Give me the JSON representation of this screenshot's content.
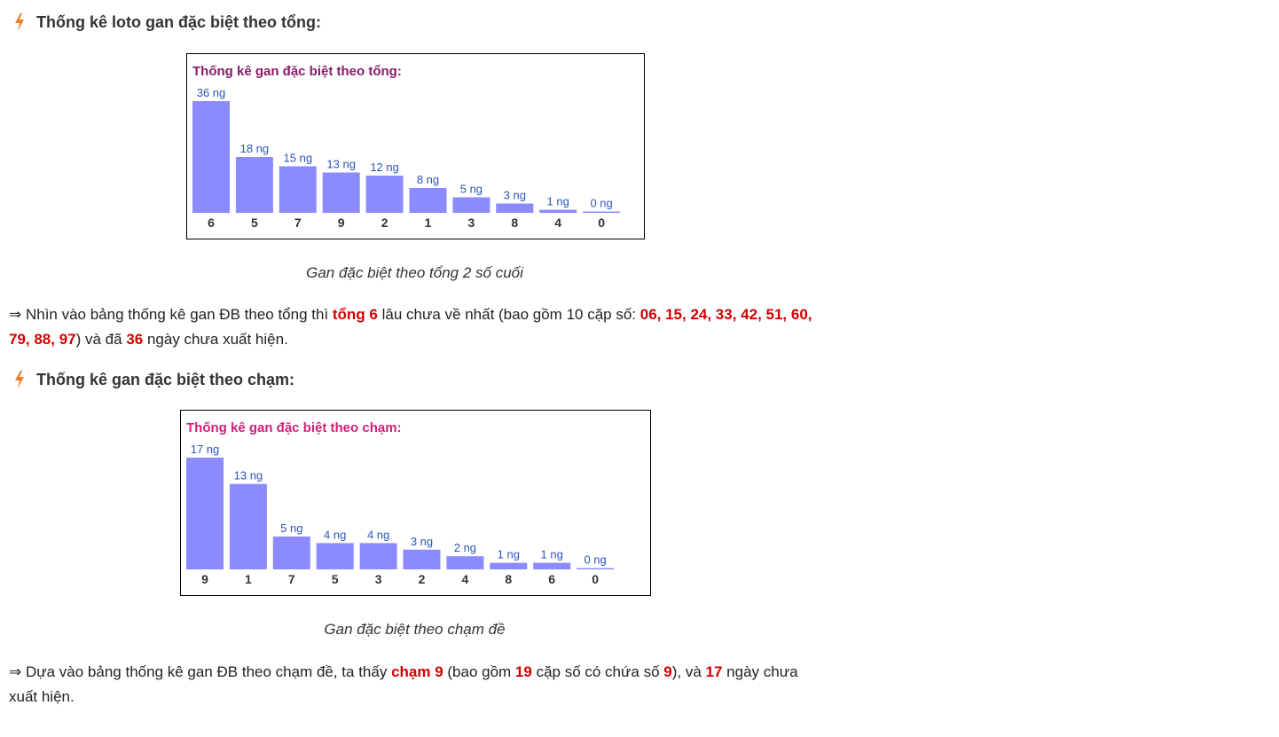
{
  "section1": {
    "heading": "Thống kê loto gan đặc biệt theo tổng:",
    "caption": "Gan đặc biệt theo tổng 2 số cuối",
    "para": {
      "t1": "⇒ Nhìn vào bảng thống kê gan ĐB theo tổng thì ",
      "h1": "tổng 6",
      "t2": " lâu chưa về nhất (bao gồm 10 cặp số: ",
      "h2": "06, 15, 24, 33, 42, 51, 60, 79, 88, 97",
      "t3": ") và đã ",
      "h3": "36",
      "t4": " ngày chưa xuất hiện."
    }
  },
  "section2": {
    "heading": "Thống kê gan đặc biệt theo chạm:",
    "caption": "Gan đặc biệt theo chạm đề",
    "para": {
      "t1": "⇒ Dựa vào bảng thống kê gan ĐB theo chạm đề, ta thấy ",
      "h1": "chạm 9",
      "t2": " (bao gồm ",
      "h2": "19",
      "t3": " cặp số có chứa số ",
      "h3": "9",
      "t4": "), và ",
      "h4": "17",
      "t5": " ngày chưa xuất hiện."
    }
  },
  "colors": {
    "bar": "#8b8bff",
    "value_label": "#2b54b8",
    "title1": "#8b1a6b",
    "title2": "#d1207a",
    "highlight": "#d40000",
    "bolt": "#f07f2a"
  },
  "icons": {
    "heading_icon": "lightning-bolt-icon"
  },
  "chart_data": [
    {
      "type": "bar",
      "title": "Thống kê gan đặc biệt theo tổng:",
      "categories": [
        "6",
        "5",
        "7",
        "9",
        "2",
        "1",
        "3",
        "8",
        "4",
        "0"
      ],
      "values": [
        36,
        18,
        15,
        13,
        12,
        8,
        5,
        3,
        1,
        0
      ],
      "value_suffix": " ng",
      "xlabel": "",
      "ylabel": "",
      "ylim": [
        0,
        36
      ]
    },
    {
      "type": "bar",
      "title": "Thống kê gan đặc biệt theo chạm:",
      "categories": [
        "9",
        "1",
        "7",
        "5",
        "3",
        "2",
        "4",
        "8",
        "6",
        "0"
      ],
      "values": [
        17,
        13,
        5,
        4,
        4,
        3,
        2,
        1,
        1,
        0
      ],
      "value_suffix": " ng",
      "xlabel": "",
      "ylabel": "",
      "ylim": [
        0,
        17
      ]
    }
  ]
}
